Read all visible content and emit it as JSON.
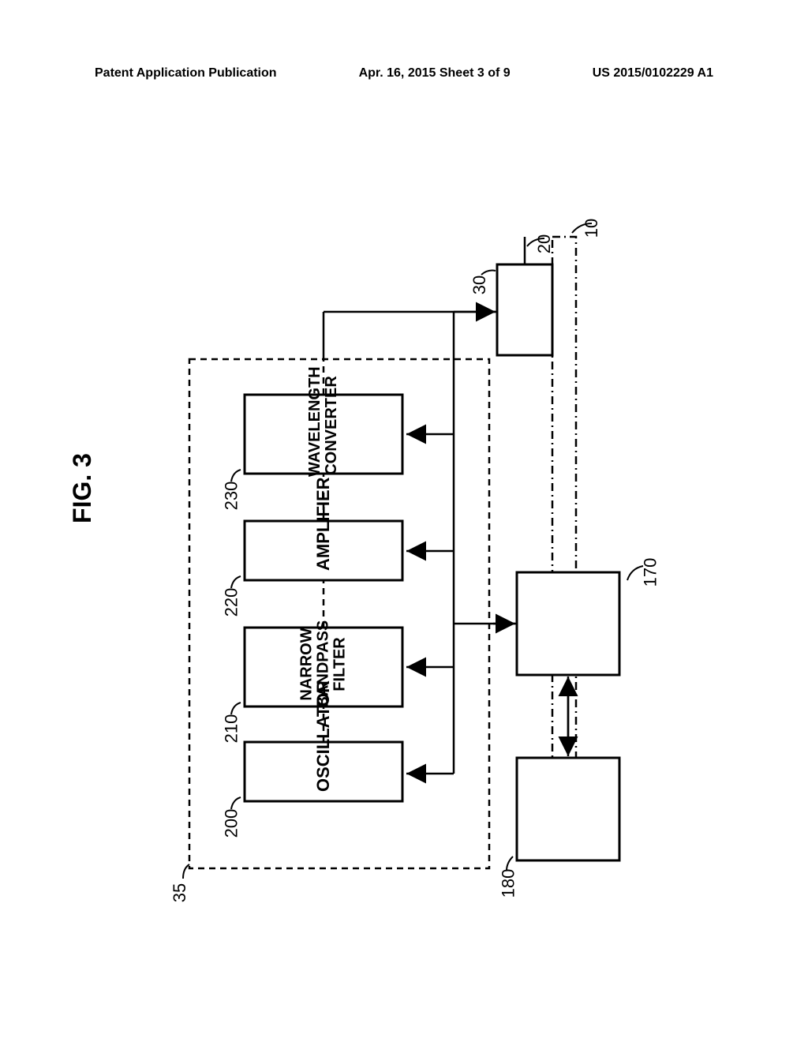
{
  "header": {
    "left": "Patent Application Publication",
    "center": "Apr. 16, 2015  Sheet 3 of 9",
    "right": "US 2015/0102229 A1"
  },
  "figure": {
    "title": "FIG. 3"
  },
  "blocks": {
    "oscillator": {
      "label": "OSCILLATOR",
      "ref": "200"
    },
    "filter": {
      "label": "NARROW\nBANDPASS\nFILTER",
      "ref": "210"
    },
    "amplifier": {
      "label": "AMPLIFIER",
      "ref": "220"
    },
    "converter": {
      "label": "WAVELENGTH\nCONVERTER",
      "ref": "230"
    },
    "block30": {
      "ref": "30"
    },
    "block170": {
      "ref": "170"
    },
    "block180": {
      "ref": "180"
    }
  },
  "refs": {
    "outer": "10",
    "top_connector": "20",
    "group": "35"
  },
  "colors": {
    "line": "#000000",
    "bg": "#ffffff"
  }
}
